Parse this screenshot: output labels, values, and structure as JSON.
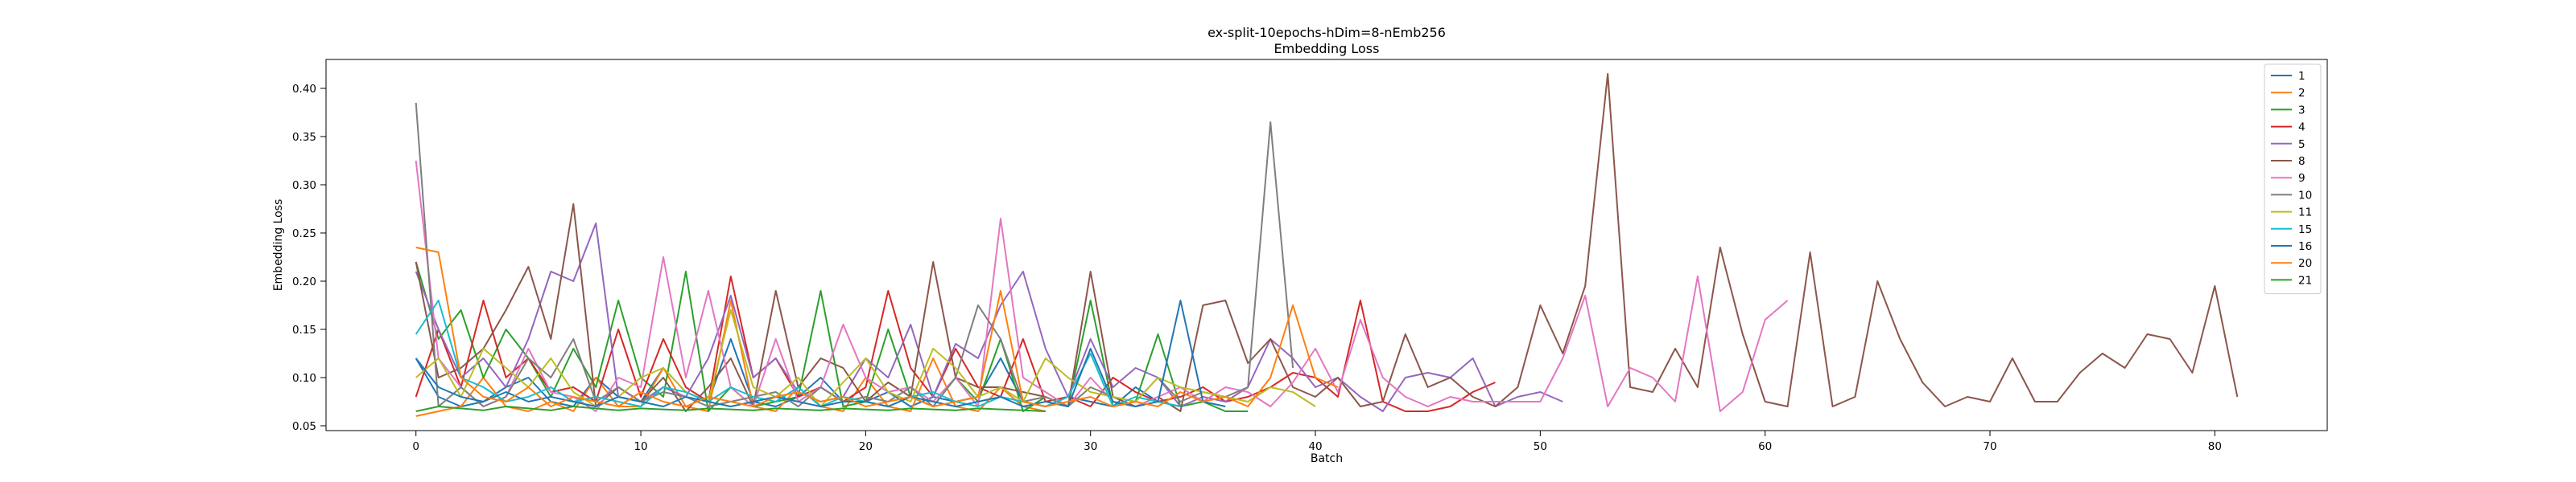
{
  "chart_data": {
    "type": "line",
    "title_lines": [
      "ex-split-10epochs-hDim=8-nEmb256",
      "Embedding Loss"
    ],
    "xlabel": "Batch",
    "ylabel": "Embedding Loss",
    "xlim": [
      -4,
      85
    ],
    "ylim": [
      0.045,
      0.43
    ],
    "xticks": [
      0,
      10,
      20,
      30,
      40,
      50,
      60,
      70,
      80
    ],
    "yticks": [
      0.05,
      0.1,
      0.15,
      0.2,
      0.25,
      0.3,
      0.35,
      0.4
    ],
    "ytick_labels": [
      "0.05",
      "0.10",
      "0.15",
      "0.20",
      "0.25",
      "0.30",
      "0.35",
      "0.40"
    ],
    "grid": false,
    "legend_position": "top-right",
    "series": [
      {
        "name": "1",
        "color": "#1f77b4",
        "values": [
          0.12,
          0.08,
          0.07,
          0.075,
          0.09,
          0.1,
          0.075,
          0.07,
          0.1,
          0.08,
          0.075,
          0.11,
          0.085,
          0.075,
          0.14,
          0.075,
          0.07,
          0.08,
          0.1,
          0.075,
          0.075,
          0.085,
          0.07,
          0.08,
          0.075,
          0.08,
          0.12,
          0.075,
          0.07,
          0.08,
          0.075,
          0.07,
          0.09,
          0.075,
          0.07
        ]
      },
      {
        "name": "2",
        "color": "#ff7f0e",
        "values": [
          0.06,
          0.065,
          0.07,
          0.1,
          0.07,
          0.065,
          0.075,
          0.065,
          0.1,
          0.07,
          0.07,
          0.11,
          0.07,
          0.065,
          0.18,
          0.07,
          0.065,
          0.09,
          0.07,
          0.065,
          0.1,
          0.07,
          0.065,
          0.12,
          0.07,
          0.065,
          0.09,
          0.07,
          0.065
        ]
      },
      {
        "name": "3",
        "color": "#2ca02c",
        "values": [
          0.22,
          0.14,
          0.17,
          0.1,
          0.15,
          0.12,
          0.08,
          0.13,
          0.09,
          0.18,
          0.1,
          0.08,
          0.21,
          0.065,
          0.09,
          0.07,
          0.075,
          0.08,
          0.19,
          0.07,
          0.075,
          0.15,
          0.08,
          0.07,
          0.1,
          0.075,
          0.14,
          0.065,
          0.08,
          0.07,
          0.18,
          0.07,
          0.075,
          0.145,
          0.07,
          0.075,
          0.065,
          0.065
        ]
      },
      {
        "name": "4",
        "color": "#d62728",
        "values": [
          0.08,
          0.15,
          0.09,
          0.18,
          0.1,
          0.12,
          0.085,
          0.09,
          0.075,
          0.15,
          0.08,
          0.14,
          0.09,
          0.075,
          0.205,
          0.1,
          0.12,
          0.08,
          0.09,
          0.075,
          0.09,
          0.19,
          0.11,
          0.08,
          0.13,
          0.09,
          0.08,
          0.14,
          0.075,
          0.08,
          0.07,
          0.1,
          0.085,
          0.075,
          0.08,
          0.09,
          0.075,
          0.08,
          0.09,
          0.105,
          0.1,
          0.08,
          0.18,
          0.075,
          0.065,
          0.065,
          0.07,
          0.085,
          0.095
        ]
      },
      {
        "name": "5",
        "color": "#9467bd",
        "values": [
          0.21,
          0.15,
          0.1,
          0.12,
          0.09,
          0.14,
          0.21,
          0.2,
          0.26,
          0.08,
          0.075,
          0.09,
          0.08,
          0.12,
          0.185,
          0.1,
          0.12,
          0.085,
          0.075,
          0.08,
          0.12,
          0.1,
          0.155,
          0.08,
          0.135,
          0.12,
          0.175,
          0.21,
          0.13,
          0.08,
          0.14,
          0.09,
          0.11,
          0.1,
          0.07,
          0.08,
          0.075,
          0.09,
          0.14,
          0.12,
          0.09,
          0.1,
          0.08,
          0.065,
          0.1,
          0.105,
          0.1,
          0.12,
          0.07,
          0.08,
          0.085,
          0.075
        ]
      },
      {
        "name": "8",
        "color": "#8c564b",
        "values": [
          0.22,
          0.1,
          0.11,
          0.13,
          0.17,
          0.215,
          0.14,
          0.28,
          0.07,
          0.09,
          0.075,
          0.1,
          0.065,
          0.09,
          0.12,
          0.07,
          0.19,
          0.09,
          0.12,
          0.11,
          0.075,
          0.095,
          0.08,
          0.22,
          0.1,
          0.09,
          0.09,
          0.085,
          0.08,
          0.07,
          0.21,
          0.08,
          0.07,
          0.08,
          0.065,
          0.175,
          0.18,
          0.115,
          0.14,
          0.09,
          0.08,
          0.1,
          0.07,
          0.075,
          0.145,
          0.09,
          0.1,
          0.08,
          0.07,
          0.09,
          0.175,
          0.125,
          0.195,
          0.415,
          0.09,
          0.085,
          0.13,
          0.09,
          0.235,
          0.145,
          0.075,
          0.07,
          0.23,
          0.07,
          0.08,
          0.2,
          0.14,
          0.095,
          0.07,
          0.08,
          0.075,
          0.12,
          0.075,
          0.075,
          0.105,
          0.125,
          0.11,
          0.145,
          0.14,
          0.105,
          0.195,
          0.08
        ]
      },
      {
        "name": "9",
        "color": "#e377c2",
        "values": [
          0.325,
          0.12,
          0.09,
          0.07,
          0.08,
          0.13,
          0.085,
          0.08,
          0.065,
          0.1,
          0.09,
          0.225,
          0.1,
          0.19,
          0.09,
          0.07,
          0.14,
          0.075,
          0.09,
          0.155,
          0.1,
          0.085,
          0.09,
          0.075,
          0.1,
          0.07,
          0.265,
          0.1,
          0.085,
          0.07,
          0.1,
          0.075,
          0.07,
          0.08,
          0.09,
          0.075,
          0.09,
          0.085,
          0.07,
          0.095,
          0.13,
          0.085,
          0.16,
          0.1,
          0.08,
          0.07,
          0.08,
          0.075,
          0.075,
          0.075,
          0.075,
          0.12,
          0.185,
          0.07,
          0.11,
          0.1,
          0.075,
          0.205,
          0.065,
          0.085,
          0.16,
          0.18
        ]
      },
      {
        "name": "10",
        "color": "#7f7f7f",
        "values": [
          0.385,
          0.07,
          0.09,
          0.07,
          0.08,
          0.12,
          0.1,
          0.14,
          0.075,
          0.09,
          0.075,
          0.085,
          0.08,
          0.07,
          0.075,
          0.08,
          0.085,
          0.07,
          0.09,
          0.075,
          0.08,
          0.075,
          0.09,
          0.07,
          0.1,
          0.175,
          0.14,
          0.075,
          0.08,
          0.07,
          0.09,
          0.08,
          0.075,
          0.1,
          0.075,
          0.085,
          0.08,
          0.09,
          0.365,
          0.11
        ]
      },
      {
        "name": "11",
        "color": "#bcbd22",
        "values": [
          0.1,
          0.12,
          0.08,
          0.13,
          0.11,
          0.09,
          0.12,
          0.085,
          0.07,
          0.08,
          0.1,
          0.11,
          0.085,
          0.075,
          0.17,
          0.09,
          0.08,
          0.1,
          0.07,
          0.095,
          0.12,
          0.085,
          0.075,
          0.13,
          0.11,
          0.08,
          0.09,
          0.075,
          0.12,
          0.1,
          0.085,
          0.08,
          0.075,
          0.1,
          0.09,
          0.085,
          0.08,
          0.075,
          0.09,
          0.085,
          0.07
        ]
      },
      {
        "name": "15",
        "color": "#17becf",
        "values": [
          0.145,
          0.18,
          0.1,
          0.09,
          0.075,
          0.08,
          0.09,
          0.075,
          0.08,
          0.075,
          0.07,
          0.09,
          0.085,
          0.075,
          0.09,
          0.08,
          0.075,
          0.09,
          0.07,
          0.08,
          0.075,
          0.07,
          0.08,
          0.085,
          0.075,
          0.07,
          0.08,
          0.075,
          0.07,
          0.08,
          0.125,
          0.07,
          0.08,
          0.075,
          0.07
        ]
      },
      {
        "name": "16",
        "color": "#1f77b4",
        "values": [
          0.12,
          0.09,
          0.08,
          0.075,
          0.085,
          0.075,
          0.08,
          0.075,
          0.07,
          0.08,
          0.075,
          0.07,
          0.08,
          0.075,
          0.07,
          0.075,
          0.08,
          0.075,
          0.07,
          0.075,
          0.075,
          0.07,
          0.08,
          0.075,
          0.07,
          0.075,
          0.08,
          0.07,
          0.075,
          0.07,
          0.13,
          0.075,
          0.07,
          0.075,
          0.18,
          0.075,
          0.07
        ]
      },
      {
        "name": "20",
        "color": "#ff7f0e",
        "values": [
          0.235,
          0.23,
          0.1,
          0.08,
          0.075,
          0.09,
          0.07,
          0.08,
          0.075,
          0.07,
          0.085,
          0.075,
          0.07,
          0.08,
          0.075,
          0.07,
          0.08,
          0.085,
          0.075,
          0.08,
          0.07,
          0.075,
          0.08,
          0.07,
          0.075,
          0.08,
          0.19,
          0.075,
          0.07,
          0.075,
          0.08,
          0.07,
          0.075,
          0.07,
          0.085,
          0.075,
          0.08,
          0.07,
          0.1,
          0.175,
          0.1,
          0.09
        ]
      },
      {
        "name": "21",
        "color": "#2ca02c",
        "values": [
          0.065,
          0.07,
          0.068,
          0.066,
          0.07,
          0.068,
          0.066,
          0.07,
          0.068,
          0.066,
          0.068,
          0.067,
          0.066,
          0.068,
          0.067,
          0.066,
          0.068,
          0.067,
          0.066,
          0.068,
          0.067,
          0.066,
          0.068,
          0.067,
          0.066,
          0.068,
          0.067,
          0.066,
          0.065
        ]
      }
    ]
  }
}
